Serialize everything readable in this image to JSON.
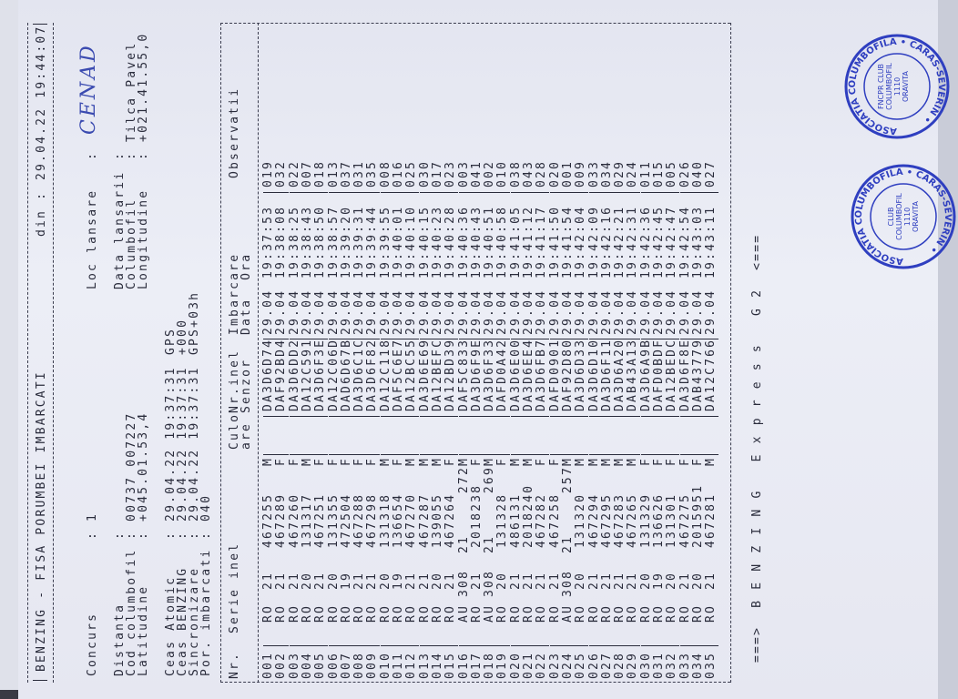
{
  "title": "BENZING - FISA PORUMBEI IMBARCATI",
  "din_label": "din :",
  "din_value": "29.04.22 19:44:07",
  "concurs": {
    "label": "Concurs",
    "value": ": 1"
  },
  "loc_lansare": {
    "label": "Loc lansare",
    "value": ":",
    "handwritten": "CENAD"
  },
  "left_info": [
    {
      "label": "Distanta",
      "value": ":"
    },
    {
      "label": "Cod columbofil",
      "value": ": 00737 007227"
    },
    {
      "label": "Latitudine",
      "value": ": +045.01.53,4"
    }
  ],
  "right_info": [
    {
      "label": "Data lansarii",
      "value": ":"
    },
    {
      "label": "Columbofil",
      "value": ": Tilca Pavel"
    },
    {
      "label": "Longitudine",
      "value": ": +021.41.55,0"
    }
  ],
  "clock_info": [
    {
      "label": "Ceas Atomic",
      "value": ": 29.04.22 19:37:31",
      "extra": "GPS"
    },
    {
      "label": "Ceas BENZING",
      "value": ": 29.04.22 19:37:31",
      "extra": "+000"
    },
    {
      "label": "Sincronizare",
      "value": ": 29.04.22 19:37:31",
      "extra": "GPS+03h"
    },
    {
      "label": "Por. imbarcati",
      "value": ": 040",
      "extra": ""
    }
  ],
  "headers": {
    "nr": "Nr.",
    "serie": "Serie inel",
    "culo1": "Culo",
    "culo2": "are",
    "senzor1": "Nr.inel",
    "senzor2": "Senzor",
    "imb1": "Imbarcare",
    "imb2": "Data  Ora",
    "obs": "Observatii"
  },
  "rows": [
    {
      "nr": "001",
      "tara": "RO",
      "an": "21",
      "inel": "467255",
      "sex": "M",
      "chip": "DA3D6D74",
      "date": "29.04",
      "time": "19:37:53",
      "obs": "019"
    },
    {
      "nr": "002",
      "tara": "RO",
      "an": "21",
      "inel": "467289",
      "sex": "F",
      "chip": "DAF92BD4",
      "date": "29.04",
      "time": "19:38:08",
      "obs": "032"
    },
    {
      "nr": "003",
      "tara": "RO",
      "an": "21",
      "inel": "467260",
      "sex": "F",
      "chip": "DA3D6DD2",
      "date": "29.04",
      "time": "19:38:25",
      "obs": "022"
    },
    {
      "nr": "004",
      "tara": "RO",
      "an": "20",
      "inel": "131317",
      "sex": "M",
      "chip": "DA12C591",
      "date": "29.04",
      "time": "19:38:43",
      "obs": "007"
    },
    {
      "nr": "005",
      "tara": "RO",
      "an": "21",
      "inel": "467251",
      "sex": "F",
      "chip": "DA3D6F3E",
      "date": "29.04",
      "time": "19:38:50",
      "obs": "018"
    },
    {
      "nr": "006",
      "tara": "RO",
      "an": "20",
      "inel": "131355",
      "sex": "F",
      "chip": "DA12C06D",
      "date": "29.04",
      "time": "19:38:57",
      "obs": "013"
    },
    {
      "nr": "007",
      "tara": "RO",
      "an": "19",
      "inel": "472504",
      "sex": "F",
      "chip": "DAD6D67B",
      "date": "29.04",
      "time": "19:39:20",
      "obs": "037"
    },
    {
      "nr": "008",
      "tara": "RO",
      "an": "21",
      "inel": "467288",
      "sex": "F",
      "chip": "DA3D6C1C",
      "date": "29.04",
      "time": "19:39:31",
      "obs": "031"
    },
    {
      "nr": "009",
      "tara": "RO",
      "an": "21",
      "inel": "467298",
      "sex": "F",
      "chip": "DA3D6F82",
      "date": "29.04",
      "time": "19:39:44",
      "obs": "035"
    },
    {
      "nr": "010",
      "tara": "RO",
      "an": "20",
      "inel": "131318",
      "sex": "M",
      "chip": "DA12C118",
      "date": "29.04",
      "time": "19:39:55",
      "obs": "008"
    },
    {
      "nr": "011",
      "tara": "RO",
      "an": "19",
      "inel": "136654",
      "sex": "F",
      "chip": "DAF5C6E7",
      "date": "29.04",
      "time": "19:40:01",
      "obs": "016"
    },
    {
      "nr": "012",
      "tara": "RO",
      "an": "21",
      "inel": "467270",
      "sex": "M",
      "chip": "DA12BC55",
      "date": "29.04",
      "time": "19:40:10",
      "obs": "025"
    },
    {
      "nr": "013",
      "tara": "RO",
      "an": "21",
      "inel": "467287",
      "sex": "M",
      "chip": "DA3D6E69",
      "date": "29.04",
      "time": "19:40:15",
      "obs": "030"
    },
    {
      "nr": "014",
      "tara": "RO",
      "an": "20",
      "inel": "139055",
      "sex": "M",
      "chip": "DA12BEFC",
      "date": "29.04",
      "time": "19:40:23",
      "obs": "017"
    },
    {
      "nr": "015",
      "tara": "RO",
      "an": "21",
      "inel": "467264",
      "sex": "F",
      "chip": "DA12BD39",
      "date": "29.04",
      "time": "19:40:28",
      "obs": "023"
    },
    {
      "nr": "016",
      "tara": "AU",
      "an": "308",
      "inel": "21",
      "sex": "272M",
      "chip": "DAF5C833",
      "date": "29.04",
      "time": "19:40:36",
      "obs": "003"
    },
    {
      "nr": "017",
      "tara": "RO",
      "an": "21",
      "inel": "2018238",
      "sex": "F",
      "chip": "DA3D6F9E",
      "date": "29.04",
      "time": "19:40:43",
      "obs": "041"
    },
    {
      "nr": "018",
      "tara": "AU",
      "an": "308",
      "inel": "21",
      "sex": "269M",
      "chip": "DA3D6F33",
      "date": "29.04",
      "time": "19:40:51",
      "obs": "002"
    },
    {
      "nr": "019",
      "tara": "RO",
      "an": "20",
      "inel": "131328",
      "sex": "F",
      "chip": "DAFD0A42",
      "date": "29.04",
      "time": "19:40:58",
      "obs": "010"
    },
    {
      "nr": "020",
      "tara": "RO",
      "an": "21",
      "inel": "486131",
      "sex": "M",
      "chip": "DA3D6E00",
      "date": "29.04",
      "time": "19:41:05",
      "obs": "038"
    },
    {
      "nr": "021",
      "tara": "RO",
      "an": "21",
      "inel": "2018240",
      "sex": "M",
      "chip": "DA3D6EE4",
      "date": "29.04",
      "time": "19:41:12",
      "obs": "043"
    },
    {
      "nr": "022",
      "tara": "RO",
      "an": "21",
      "inel": "467282",
      "sex": "F",
      "chip": "DA3D6FB7",
      "date": "29.04",
      "time": "19:41:17",
      "obs": "028"
    },
    {
      "nr": "023",
      "tara": "RO",
      "an": "21",
      "inel": "467258",
      "sex": "F",
      "chip": "DAFD0901",
      "date": "29.04",
      "time": "19:41:50",
      "obs": "020"
    },
    {
      "nr": "024",
      "tara": "AU",
      "an": "308",
      "inel": "21",
      "sex": "257M",
      "chip": "DAF92D80",
      "date": "29.04",
      "time": "19:41:54",
      "obs": "001"
    },
    {
      "nr": "025",
      "tara": "RO",
      "an": "20",
      "inel": "131320",
      "sex": "M",
      "chip": "DA3D6D33",
      "date": "29.04",
      "time": "19:42:04",
      "obs": "009"
    },
    {
      "nr": "026",
      "tara": "RO",
      "an": "21",
      "inel": "467294",
      "sex": "M",
      "chip": "DA3D6D10",
      "date": "29.04",
      "time": "19:42:09",
      "obs": "033"
    },
    {
      "nr": "027",
      "tara": "RO",
      "an": "21",
      "inel": "467295",
      "sex": "M",
      "chip": "DA3D6F11",
      "date": "29.04",
      "time": "19:42:16",
      "obs": "034"
    },
    {
      "nr": "028",
      "tara": "RO",
      "an": "21",
      "inel": "467283",
      "sex": "M",
      "chip": "DA3D6A20",
      "date": "29.04",
      "time": "19:42:21",
      "obs": "029"
    },
    {
      "nr": "029",
      "tara": "RO",
      "an": "21",
      "inel": "467265",
      "sex": "M",
      "chip": "DAB43A13",
      "date": "29.04",
      "time": "19:42:31",
      "obs": "024"
    },
    {
      "nr": "030",
      "tara": "RO",
      "an": "20",
      "inel": "131329",
      "sex": "F",
      "chip": "DA3D6A9B",
      "date": "29.04",
      "time": "19:42:36",
      "obs": "011"
    },
    {
      "nr": "031",
      "tara": "RO",
      "an": "19",
      "inel": "136626",
      "sex": "F",
      "chip": "DAFD0BDF",
      "date": "29.04",
      "time": "19:42:45",
      "obs": "015"
    },
    {
      "nr": "032",
      "tara": "RO",
      "an": "20",
      "inel": "131301",
      "sex": "F",
      "chip": "DA12BEDC",
      "date": "29.04",
      "time": "19:42:47",
      "obs": "005"
    },
    {
      "nr": "033",
      "tara": "RO",
      "an": "21",
      "inel": "467275",
      "sex": "F",
      "chip": "DA3D6F8E",
      "date": "29.04",
      "time": "19:42:54",
      "obs": "026"
    },
    {
      "nr": "034",
      "tara": "RO",
      "an": "20",
      "inel": "2015951",
      "sex": "F",
      "chip": "DAB43779",
      "date": "29.04",
      "time": "19:43:03",
      "obs": "040"
    },
    {
      "nr": "035",
      "tara": "RO",
      "an": "21",
      "inel": "467281",
      "sex": "M",
      "chip": "DA12C766",
      "date": "29.04",
      "time": "19:43:11",
      "obs": "027"
    }
  ],
  "footer": "===>  B E N Z I N G   E x p r e s s   G 2  <===",
  "stamps": [
    {
      "ring": "ASOCIATIA COLUMBOFILA • CARAS-SEVERIN •",
      "center": "FNCPR CLUB COLUMBOFIL 1110 ORAVITA"
    },
    {
      "ring": "ASOCIATIA COLUMBOFILA • CARAS-SEVERIN •",
      "center": "CLUB COLUMBOFIL 1110 ORAVITA"
    }
  ],
  "colors": {
    "ink": "#2a2c3c",
    "stamp": "#2f3fc0",
    "handwriting": "#3b4bb0",
    "paper": "#eceef6"
  }
}
